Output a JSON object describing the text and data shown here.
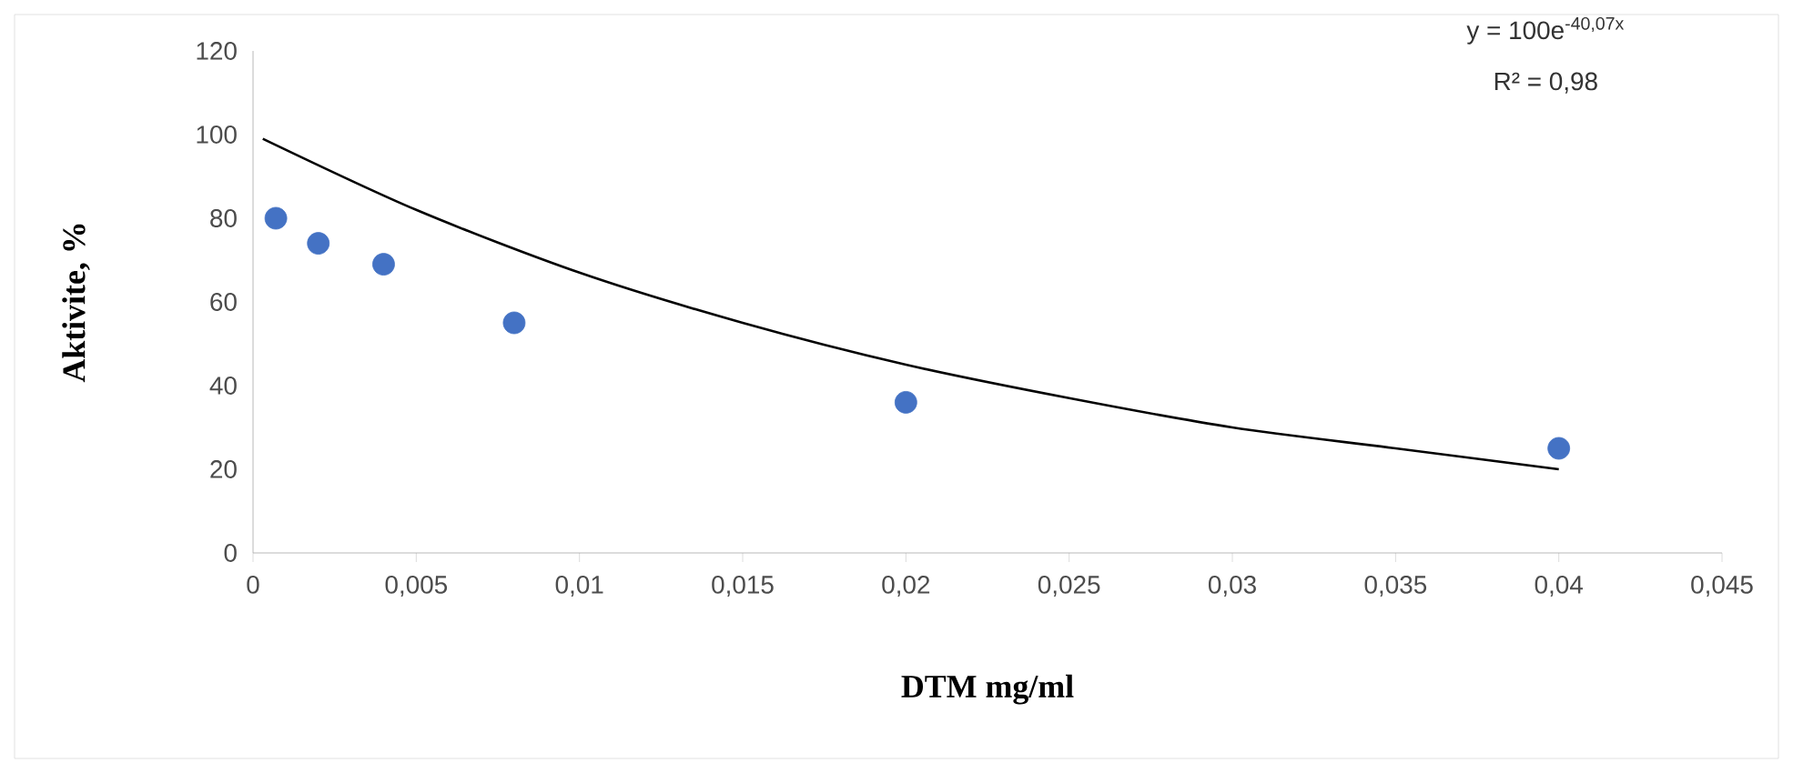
{
  "chart_data": {
    "type": "scatter",
    "xlabel": "DTM mg/ml",
    "ylabel": "Aktivite, %",
    "annotations": [
      "y = 100e$^{-40,07x}$",
      "R² = 0,98"
    ],
    "series": [
      {
        "color": "#4472c4",
        "marker": "circle",
        "x": [
          0.0007,
          0.002,
          0.004,
          0.008,
          0.02,
          0.04
        ],
        "values": [
          80,
          74,
          69,
          55,
          36,
          25
        ]
      },
      {
        "type": "line",
        "color": "#000000",
        "marker": "none",
        "line_style": "solid",
        "x": [
          0.0003,
          0.005,
          0.01,
          0.015,
          0.02,
          0.025,
          0.03,
          0.035,
          0.04
        ],
        "values": [
          99,
          82,
          67,
          55,
          45,
          37,
          30,
          25,
          20
        ]
      }
    ],
    "xlim": [
      0,
      0.045
    ],
    "ylim": [
      0,
      120
    ],
    "xticks": [
      {
        "value": 0,
        "label": "0"
      },
      {
        "value": 0.005,
        "label": "0,005"
      },
      {
        "value": 0.01,
        "label": "0,01"
      },
      {
        "value": 0.015,
        "label": "0,015"
      },
      {
        "value": 0.02,
        "label": "0,02"
      },
      {
        "value": 0.025,
        "label": "0,025"
      },
      {
        "value": 0.03,
        "label": "0,03"
      },
      {
        "value": 0.035,
        "label": "0,035"
      },
      {
        "value": 0.04,
        "label": "0,04"
      },
      {
        "value": 0.045,
        "label": "0,045"
      }
    ],
    "yticks": [
      0,
      20,
      40,
      60,
      80,
      100,
      120
    ],
    "grid": false
  }
}
